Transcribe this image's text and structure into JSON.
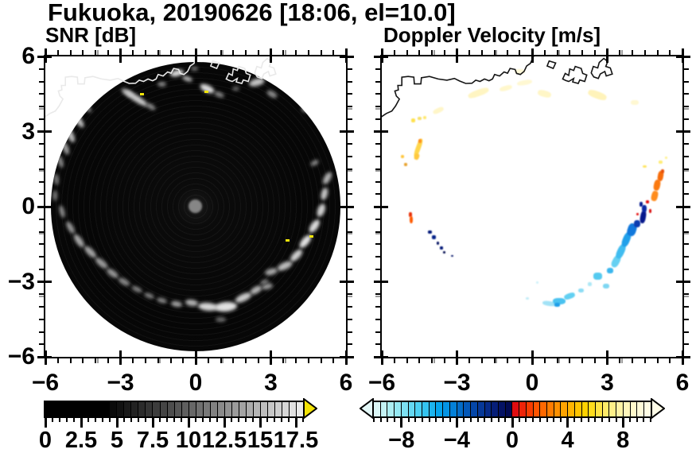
{
  "title": "Fukuoka, 20190626 [18:06, el=10.0]",
  "panels": {
    "snr": {
      "label": "SNR [dB]"
    },
    "velocity": {
      "label": "Doppler Velocity [m/s]"
    }
  },
  "axis": {
    "range": [
      -6,
      6
    ],
    "minor_step": 0.5,
    "tick_values": [
      -6,
      -3,
      0,
      3,
      6
    ],
    "tick_labels": [
      "−6",
      "−3",
      "0",
      "3",
      "6"
    ],
    "gray_tick_y": [
      3.92,
      1.42,
      -1.08,
      -3.58
    ],
    "gray_tick_x": [
      -3.92,
      -1.42,
      1.08,
      3.58
    ]
  },
  "colorbars": {
    "snr": {
      "min": 0,
      "max": 18,
      "cell_step": 0.5,
      "tick_values": [
        0,
        2.5,
        5,
        7.5,
        10,
        12.5,
        15,
        17.5
      ],
      "tick_labels": [
        "0",
        "2.5",
        "5",
        "7.5",
        "10",
        "12.5",
        "15",
        "17.5"
      ],
      "over_arrow_color": "#f2e205",
      "cells": [
        "#000000",
        "#000000",
        "#000000",
        "#000000",
        "#000000",
        "#000000",
        "#000000",
        "#000000",
        "#000000",
        "#0a0a0a",
        "#111111",
        "#1a1a1a",
        "#222222",
        "#2b2b2b",
        "#343434",
        "#3c3c3c",
        "#454545",
        "#4d4d4d",
        "#565656",
        "#5f5f5f",
        "#676767",
        "#707070",
        "#787878",
        "#818181",
        "#8a8a8a",
        "#929292",
        "#9b9b9b",
        "#a3a3a3",
        "#acacac",
        "#b5b5b5",
        "#bdbdbd",
        "#c6c6c6",
        "#cecece",
        "#d7d7d7",
        "#e0e0e0",
        "#e9e9e9"
      ]
    },
    "velocity": {
      "min": -10,
      "max": 10,
      "cell_step": 0.5,
      "tick_values": [
        -8,
        -4,
        0,
        4,
        8
      ],
      "tick_labels": [
        "−8",
        "−4",
        "0",
        "4",
        "8"
      ],
      "under_arrow_color": "#e4f8f8",
      "over_arrow_color": "#fffde8",
      "cells": [
        "#daf6f6",
        "#c4f2f4",
        "#aceef2",
        "#94e8f2",
        "#7ce0f2",
        "#64d8f2",
        "#4cd0f2",
        "#34c4f0",
        "#1cb4ee",
        "#04a4ec",
        "#0494e4",
        "#0480d8",
        "#046cc8",
        "#0458b8",
        "#0446a8",
        "#063898",
        "#062a88",
        "#061e78",
        "#041264",
        "#020a52",
        "#e00c10",
        "#ee2408",
        "#f83c00",
        "#ff5400",
        "#ff6800",
        "#ff7c00",
        "#ff9000",
        "#ffa400",
        "#ffb400",
        "#ffc400",
        "#ffd200",
        "#ffdc1c",
        "#ffe444",
        "#ffea68",
        "#ffef88",
        "#fff3a4",
        "#fff6ba",
        "#fff8ca",
        "#fffad8",
        "#fffce4"
      ]
    }
  },
  "coastline": {
    "main": [
      [
        -6.15,
        3.5
      ],
      [
        -5.82,
        3.72
      ],
      [
        -5.6,
        3.82
      ],
      [
        -5.45,
        4.02
      ],
      [
        -5.3,
        4.3
      ],
      [
        -5.42,
        4.42
      ],
      [
        -5.48,
        4.62
      ],
      [
        -5.34,
        4.66
      ],
      [
        -5.36,
        4.84
      ],
      [
        -5.2,
        4.84
      ],
      [
        -5.2,
        5.17
      ],
      [
        -4.95,
        5.2
      ],
      [
        -4.72,
        5.17
      ],
      [
        -4.7,
        4.9
      ],
      [
        -4.44,
        4.9
      ],
      [
        -4.42,
        5.15
      ],
      [
        -4.1,
        5.2
      ],
      [
        -3.75,
        5.1
      ],
      [
        -3.4,
        5.05
      ],
      [
        -3.1,
        5.12
      ],
      [
        -2.9,
        5.02
      ],
      [
        -2.65,
        4.92
      ],
      [
        -2.4,
        4.93
      ],
      [
        -2.25,
        5.05
      ],
      [
        -2.08,
        5.0
      ],
      [
        -1.9,
        5.1
      ],
      [
        -1.72,
        5.03
      ],
      [
        -1.58,
        5.1
      ],
      [
        -1.5,
        5.28
      ],
      [
        -1.3,
        5.22
      ],
      [
        -1.12,
        5.38
      ],
      [
        -0.98,
        5.33
      ],
      [
        -0.88,
        5.52
      ],
      [
        -0.68,
        5.48
      ],
      [
        -0.62,
        5.32
      ],
      [
        -0.47,
        5.28
      ],
      [
        -0.32,
        5.4
      ],
      [
        -0.22,
        5.62
      ],
      [
        -0.07,
        5.72
      ],
      [
        0.02,
        5.92
      ],
      [
        0.1,
        6.1
      ]
    ],
    "islet": [
      [
        0.6,
        5.62
      ],
      [
        0.68,
        5.82
      ],
      [
        0.94,
        5.74
      ],
      [
        0.84,
        5.52
      ]
    ],
    "port_a": [
      [
        1.22,
        5.1
      ],
      [
        1.32,
        5.32
      ],
      [
        1.46,
        5.24
      ],
      [
        1.5,
        5.5
      ],
      [
        1.66,
        5.44
      ],
      [
        1.72,
        5.6
      ],
      [
        1.96,
        5.52
      ],
      [
        2.02,
        5.32
      ],
      [
        2.18,
        5.26
      ],
      [
        2.1,
        5.0
      ],
      [
        1.9,
        5.06
      ],
      [
        1.84,
        4.92
      ],
      [
        1.62,
        4.98
      ],
      [
        1.66,
        5.12
      ],
      [
        1.46,
        5.0
      ],
      [
        1.34,
        5.04
      ]
    ],
    "port_b": [
      [
        2.36,
        5.34
      ],
      [
        2.44,
        5.6
      ],
      [
        2.62,
        5.54
      ],
      [
        2.68,
        5.76
      ],
      [
        2.86,
        5.92
      ],
      [
        3.02,
        5.8
      ],
      [
        2.94,
        5.6
      ],
      [
        3.12,
        5.54
      ],
      [
        3.2,
        5.3
      ],
      [
        2.96,
        5.22
      ],
      [
        2.9,
        5.4
      ],
      [
        2.72,
        5.3
      ],
      [
        2.64,
        5.12
      ],
      [
        2.46,
        5.18
      ]
    ],
    "color_snr": "#e9e9e9",
    "color_velocity": "#141414"
  },
  "chart_data": [
    {
      "type": "heatmap",
      "title": "SNR [dB]",
      "xlim": [
        -6,
        6
      ],
      "ylim": [
        -6,
        6
      ],
      "units": "dB",
      "scan_radius": 5.78,
      "background_inside_scan": "#060606",
      "center_marker": {
        "x": 0,
        "y": 0,
        "radius": 0.27,
        "color": "#868686"
      },
      "colorbar_range": [
        0,
        18
      ],
      "echoes": [
        [
          -2.75,
          4.55,
          0.5,
          0.22,
          30,
          "#b0b0b0"
        ],
        [
          -2.35,
          4.3,
          1.05,
          0.26,
          33,
          "#c9c9c9"
        ],
        [
          -1.8,
          4.0,
          0.4,
          0.2,
          30,
          "#8e8e8e"
        ],
        [
          -1.35,
          4.88,
          0.35,
          0.18,
          0,
          "#8a8a8a"
        ],
        [
          -0.75,
          5.35,
          0.55,
          0.25,
          -15,
          "#d8d8d8"
        ],
        [
          -0.35,
          5.12,
          0.4,
          0.2,
          20,
          "#b4b4b4"
        ],
        [
          -0.05,
          5.5,
          0.3,
          0.15,
          0,
          "#787878"
        ],
        [
          0.45,
          4.72,
          0.6,
          0.28,
          25,
          "#dcdcdc"
        ],
        [
          0.95,
          4.48,
          0.42,
          0.2,
          20,
          "#8a8a8a"
        ],
        [
          1.6,
          4.72,
          0.3,
          0.15,
          0,
          "#6a6a6a"
        ],
        [
          2.45,
          4.95,
          0.65,
          0.3,
          -15,
          "#c4c4c4"
        ],
        [
          3.05,
          4.5,
          0.45,
          0.22,
          30,
          "#8e8e8e"
        ],
        [
          4.5,
          3.95,
          0.55,
          0.3,
          -20,
          "#9e9e9e"
        ],
        [
          -4.35,
          3.95,
          0.5,
          0.2,
          45,
          "#8a8a8a"
        ],
        [
          -4.7,
          3.5,
          0.8,
          0.26,
          55,
          "#c0c0c0"
        ],
        [
          -5.0,
          2.9,
          0.7,
          0.26,
          65,
          "#bcbcbc"
        ],
        [
          -5.2,
          2.35,
          0.55,
          0.22,
          70,
          "#a0a0a0"
        ],
        [
          -5.4,
          1.8,
          0.5,
          0.2,
          75,
          "#909090"
        ],
        [
          -5.55,
          1.1,
          0.45,
          0.18,
          85,
          "#808080"
        ],
        [
          -5.6,
          0.45,
          0.4,
          0.18,
          90,
          "#787878"
        ],
        [
          -5.35,
          -0.2,
          0.5,
          0.2,
          75,
          "#8e8e8e"
        ],
        [
          -5.0,
          -0.85,
          0.55,
          0.22,
          60,
          "#9a9a9a"
        ],
        [
          -4.65,
          -1.35,
          0.6,
          0.24,
          55,
          "#a8a8a8"
        ],
        [
          -4.2,
          -1.8,
          0.6,
          0.26,
          45,
          "#a6a6a6"
        ],
        [
          -3.75,
          -2.25,
          0.6,
          0.26,
          40,
          "#9c9c9c"
        ],
        [
          -3.3,
          -2.65,
          0.55,
          0.24,
          35,
          "#949494"
        ],
        [
          -2.85,
          -3.0,
          0.5,
          0.22,
          30,
          "#8c8c8c"
        ],
        [
          -2.35,
          -3.3,
          0.45,
          0.2,
          25,
          "#868686"
        ],
        [
          -1.85,
          -3.55,
          0.4,
          0.2,
          20,
          "#808080"
        ],
        [
          -1.35,
          -3.75,
          0.4,
          0.2,
          15,
          "#8a8a8a"
        ],
        [
          -0.75,
          -3.9,
          0.45,
          0.22,
          10,
          "#a2a2a2"
        ],
        [
          -0.15,
          -3.85,
          0.5,
          0.24,
          8,
          "#b2b2b2"
        ],
        [
          0.5,
          -4.0,
          0.8,
          0.32,
          5,
          "#d6d6d6"
        ],
        [
          1.2,
          -4.0,
          0.9,
          0.38,
          -5,
          "#e2e2e2"
        ],
        [
          1.9,
          -3.65,
          0.7,
          0.3,
          -25,
          "#cccccc"
        ],
        [
          2.4,
          -3.35,
          0.5,
          0.26,
          -30,
          "#b6b6b6"
        ],
        [
          2.85,
          -3.2,
          0.45,
          0.22,
          -15,
          "#9c9c9c"
        ],
        [
          1.0,
          -4.5,
          0.4,
          0.18,
          0,
          "#6e6e6e"
        ],
        [
          2.75,
          -3.0,
          0.35,
          0.18,
          -20,
          "#7e7e7e"
        ],
        [
          4.75,
          1.75,
          0.35,
          0.18,
          -30,
          "#8c8c8c"
        ],
        [
          5.25,
          1.15,
          0.55,
          0.26,
          -60,
          "#b2b2b2"
        ],
        [
          5.15,
          0.5,
          0.5,
          0.26,
          -75,
          "#c6c6c6"
        ],
        [
          5.0,
          -0.15,
          0.55,
          0.28,
          -70,
          "#d2d2d2"
        ],
        [
          4.75,
          -0.8,
          0.6,
          0.3,
          -55,
          "#dedede"
        ],
        [
          4.4,
          -1.4,
          0.65,
          0.3,
          -50,
          "#e4e4e4"
        ],
        [
          4.0,
          -1.95,
          0.6,
          0.28,
          -45,
          "#d0d0d0"
        ],
        [
          3.55,
          -2.35,
          0.65,
          0.28,
          -25,
          "#bcbcbc"
        ],
        [
          3.0,
          -2.6,
          0.5,
          0.24,
          -15,
          "#a6a6a6"
        ]
      ],
      "overflow_specks": {
        "color": "#f2e60a",
        "points": [
          [
            -2.15,
            4.5
          ],
          [
            0.42,
            4.6
          ],
          [
            3.68,
            -1.35
          ],
          [
            4.62,
            -1.2
          ]
        ]
      }
    },
    {
      "type": "heatmap",
      "title": "Doppler Velocity [m/s]",
      "xlim": [
        -6,
        6
      ],
      "ylim": [
        -6,
        6
      ],
      "units": "m/s",
      "colorbar_range": [
        -10,
        10
      ],
      "patches": [
        [
          -3.75,
          3.85,
          0.45,
          0.18,
          -25,
          "#fff6c8"
        ],
        [
          -2.15,
          4.55,
          0.85,
          0.25,
          -20,
          "#fff5c2"
        ],
        [
          -1.05,
          4.72,
          0.5,
          0.2,
          -15,
          "#fff7cc"
        ],
        [
          -0.3,
          4.95,
          0.6,
          0.2,
          -10,
          "#fff8d2"
        ],
        [
          -0.5,
          5.4,
          0.4,
          0.18,
          0,
          "#fff9d8"
        ],
        [
          0.5,
          4.5,
          0.55,
          0.25,
          15,
          "#fff6c6"
        ],
        [
          2.6,
          4.45,
          0.75,
          0.28,
          20,
          "#fff3ba"
        ],
        [
          4.1,
          4.15,
          0.3,
          0.2,
          0,
          "#fff8d2"
        ],
        [
          -4.75,
          3.45,
          0.16,
          0.14,
          0,
          "#ffe14d"
        ],
        [
          -4.5,
          3.52,
          0.16,
          0.12,
          0,
          "#f6e06a"
        ],
        [
          -4.28,
          3.56,
          0.14,
          0.12,
          0,
          "#ffe871"
        ],
        [
          -4.55,
          2.35,
          0.2,
          0.75,
          20,
          "#ffd64a"
        ],
        [
          -4.47,
          2.62,
          0.14,
          0.16,
          0,
          "#ff9020"
        ],
        [
          -4.62,
          2.0,
          0.18,
          0.25,
          20,
          "#ffc83e"
        ],
        [
          -5.18,
          2.0,
          0.14,
          0.12,
          0,
          "#ffc63c"
        ],
        [
          -5.05,
          1.68,
          0.12,
          0.12,
          0,
          "#e8a22e"
        ],
        [
          -4.85,
          -0.32,
          0.12,
          0.18,
          0,
          "#e83008"
        ],
        [
          -4.83,
          -0.52,
          0.13,
          0.3,
          0,
          "#ff5a00"
        ],
        [
          -4.08,
          -1.02,
          0.13,
          0.13,
          0,
          "#021878"
        ],
        [
          -3.93,
          -1.22,
          0.15,
          0.15,
          0,
          "#042288"
        ],
        [
          -3.76,
          -1.45,
          0.12,
          0.12,
          0,
          "#021060"
        ],
        [
          -3.62,
          -1.65,
          0.11,
          0.11,
          0,
          "#021878"
        ],
        [
          -3.5,
          -1.82,
          0.1,
          0.1,
          0,
          "#020c50"
        ],
        [
          -3.2,
          -1.97,
          0.09,
          0.09,
          0,
          "#021468"
        ],
        [
          -0.18,
          -3.68,
          0.13,
          0.1,
          0,
          "#c2ecf8"
        ],
        [
          0.2,
          -3.02,
          0.1,
          0.09,
          0,
          "#cef2fa"
        ],
        [
          0.68,
          -3.88,
          0.55,
          0.2,
          8,
          "#a2e2f6"
        ],
        [
          1.08,
          -3.78,
          0.5,
          0.28,
          0,
          "#4ac2f0"
        ],
        [
          1.0,
          -3.93,
          0.2,
          0.15,
          0,
          "#1e9ee8"
        ],
        [
          1.5,
          -3.58,
          0.45,
          0.22,
          -20,
          "#62d0f2"
        ],
        [
          1.95,
          -3.35,
          0.22,
          0.18,
          0,
          "#8cdcf4"
        ],
        [
          2.3,
          -3.1,
          0.16,
          0.14,
          0,
          "#aee8f6"
        ],
        [
          2.62,
          -2.78,
          0.32,
          0.26,
          0,
          "#55caf0"
        ],
        [
          2.95,
          -3.18,
          0.24,
          0.2,
          0,
          "#7ed6f2"
        ],
        [
          3.1,
          -2.55,
          0.26,
          0.22,
          0,
          "#3ab6ee"
        ],
        [
          3.35,
          -2.2,
          0.3,
          0.5,
          28,
          "#66d0f2"
        ],
        [
          3.55,
          -1.78,
          0.3,
          0.6,
          25,
          "#40bcf0"
        ],
        [
          3.78,
          -1.32,
          0.3,
          0.6,
          22,
          "#20a0ea"
        ],
        [
          3.98,
          -0.92,
          0.34,
          0.5,
          18,
          "#1078dc"
        ],
        [
          4.18,
          -0.68,
          0.25,
          0.3,
          0,
          "#0a3cb0"
        ],
        [
          4.42,
          -0.42,
          0.22,
          0.5,
          10,
          "#06188c"
        ],
        [
          4.48,
          -0.08,
          0.18,
          0.3,
          0,
          "#0a28a4"
        ],
        [
          4.35,
          0.1,
          0.12,
          0.18,
          0,
          "#061c90"
        ],
        [
          4.6,
          0.2,
          0.11,
          0.13,
          0,
          "#e01010"
        ],
        [
          4.72,
          -0.18,
          0.1,
          0.16,
          0,
          "#d80c0c"
        ],
        [
          4.2,
          -0.3,
          0.08,
          0.12,
          0,
          "#e41414"
        ],
        [
          4.88,
          0.42,
          0.24,
          0.42,
          14,
          "#ff8c1c"
        ],
        [
          5.0,
          0.85,
          0.26,
          0.45,
          12,
          "#fb7a10"
        ],
        [
          5.12,
          1.22,
          0.22,
          0.4,
          10,
          "#f76c0a"
        ],
        [
          5.2,
          1.42,
          0.14,
          0.16,
          0,
          "#e85008"
        ],
        [
          4.5,
          1.6,
          0.16,
          0.12,
          0,
          "#ffe662"
        ],
        [
          5.12,
          1.78,
          0.15,
          0.12,
          0,
          "#ffec74"
        ],
        [
          5.35,
          1.95,
          0.1,
          0.1,
          0,
          "#fff290"
        ]
      ]
    }
  ]
}
